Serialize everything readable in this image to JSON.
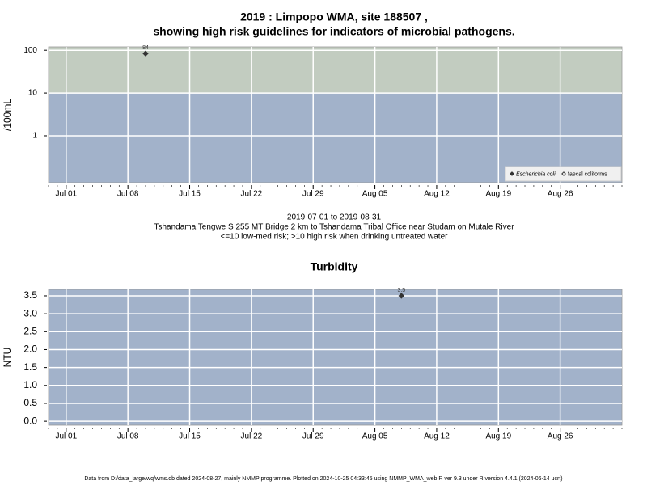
{
  "chart_data": [
    {
      "type": "scatter",
      "title": [
        "2019 : Limpopo WMA, site 188507 ,",
        "showing high risk guidelines for indicators of microbial pathogens."
      ],
      "ylabel": "/100mL",
      "log_y": true,
      "ylim": [
        0.08,
        120
      ],
      "yticks": [
        1,
        10,
        100
      ],
      "xlim": [
        "2019-06-29",
        "2019-09-02"
      ],
      "xticks": [
        {
          "value": "2019-07-01",
          "label": "Jul 01"
        },
        {
          "value": "2019-07-08",
          "label": "Jul 08"
        },
        {
          "value": "2019-07-15",
          "label": "Jul 15"
        },
        {
          "value": "2019-07-22",
          "label": "Jul 22"
        },
        {
          "value": "2019-07-29",
          "label": "Jul 29"
        },
        {
          "value": "2019-08-05",
          "label": "Aug 05"
        },
        {
          "value": "2019-08-12",
          "label": "Aug 12"
        },
        {
          "value": "2019-08-19",
          "label": "Aug 19"
        },
        {
          "value": "2019-08-26",
          "label": "Aug 26"
        }
      ],
      "risk_threshold": 10,
      "low_color": "#a2b2ca",
      "high_color": "#c2ccc0",
      "grid": true,
      "legend": "bottom-right",
      "series": [
        {
          "name": "Escherichia coli",
          "color": "#333333",
          "marker": "filled-diamond",
          "x": [
            "2019-07-10"
          ],
          "values": [
            84
          ]
        },
        {
          "name": "faecal coliforms",
          "color": "#333333",
          "marker": "open-diamond",
          "x": [],
          "values": []
        }
      ],
      "notes": [
        "2019-07-01 to 2019-08-31",
        "Tshandama Tengwe S 255 MT Bridge 2 km to Tshandama Tribal Office near Studam on Mutale River",
        "<=10 low-med risk; >10 high risk when drinking untreated water"
      ]
    },
    {
      "type": "scatter",
      "title": [
        "Turbidity"
      ],
      "ylabel": "NTU",
      "log_y": false,
      "ylim": [
        -0.11,
        3.68
      ],
      "yticks": [
        {
          "value": 0,
          "label": "0.0"
        },
        0.5,
        {
          "value": 1,
          "label": "1.0"
        },
        1.5,
        {
          "value": 2,
          "label": "2.0"
        },
        2.5,
        {
          "value": 3,
          "label": "3.0"
        },
        3.5
      ],
      "xlim": [
        "2019-06-29",
        "2019-09-02"
      ],
      "xticks": [
        {
          "value": "2019-07-01",
          "label": "Jul 01"
        },
        {
          "value": "2019-07-08",
          "label": "Jul 08"
        },
        {
          "value": "2019-07-15",
          "label": "Jul 15"
        },
        {
          "value": "2019-07-22",
          "label": "Jul 22"
        },
        {
          "value": "2019-07-29",
          "label": "Jul 29"
        },
        {
          "value": "2019-08-05",
          "label": "Aug 05"
        },
        {
          "value": "2019-08-12",
          "label": "Aug 12"
        },
        {
          "value": "2019-08-19",
          "label": "Aug 19"
        },
        {
          "value": "2019-08-26",
          "label": "Aug 26"
        }
      ],
      "low_color": "#a2b2ca",
      "grid": true,
      "series": [
        {
          "name": "Turbidity",
          "color": "#333333",
          "marker": "filled-diamond",
          "x": [
            "2019-08-08"
          ],
          "values": [
            3.5
          ]
        }
      ]
    }
  ],
  "footer": "Data from D:/data_large/wq/wms.db dated 2024-08-27, mainly NMMP programme. Plotted on 2024-10-25 04:33:45 using NMMP_WMA_web.R ver 9.3 under R version 4.4.1 (2024-06-14 ucrt)"
}
